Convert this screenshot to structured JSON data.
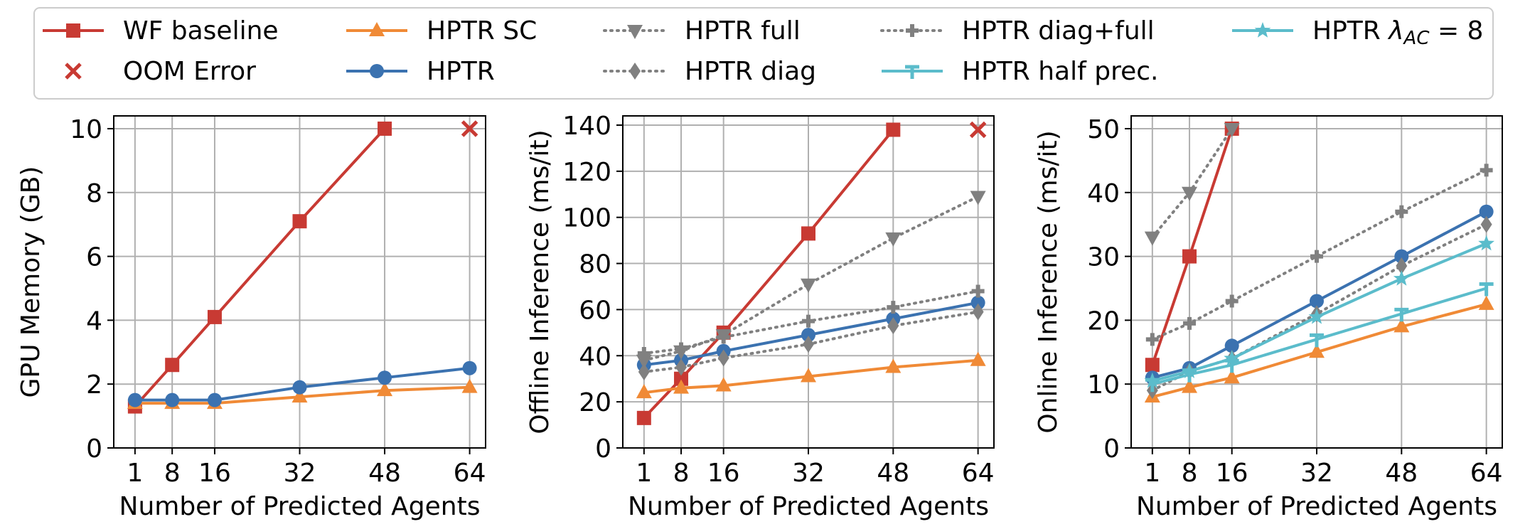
{
  "legend": [
    {
      "key": "wf",
      "label": "WF baseline"
    },
    {
      "key": "oom",
      "label": "OOM Error"
    },
    {
      "key": "sc",
      "label": "HPTR SC"
    },
    {
      "key": "hptr",
      "label": "HPTR"
    },
    {
      "key": "full",
      "label": "HPTR full"
    },
    {
      "key": "diag",
      "label": "HPTR diag"
    },
    {
      "key": "diagfull",
      "label": "HPTR diag+full"
    },
    {
      "key": "half",
      "label": "HPTR half prec."
    },
    {
      "key": "lac",
      "label": "HPTR λ_AC = 8"
    }
  ],
  "series_styles": {
    "wf": {
      "color": "#c83a33",
      "marker": "square",
      "dash": "solid"
    },
    "oom": {
      "color": "#c83a33",
      "marker": "x",
      "dash": "none"
    },
    "sc": {
      "color": "#f08a36",
      "marker": "triangle-up",
      "dash": "solid"
    },
    "hptr": {
      "color": "#3b72b0",
      "marker": "circle",
      "dash": "solid"
    },
    "full": {
      "color": "#808080",
      "marker": "triangle-down",
      "dash": "dotted"
    },
    "diag": {
      "color": "#808080",
      "marker": "diamond",
      "dash": "dotted"
    },
    "diagfull": {
      "color": "#808080",
      "marker": "plus",
      "dash": "dotted"
    },
    "half": {
      "color": "#5bbccb",
      "marker": "tri-plus",
      "dash": "solid"
    },
    "lac": {
      "color": "#5bbccb",
      "marker": "star",
      "dash": "solid"
    }
  },
  "chart_data": [
    {
      "type": "line",
      "xlabel": "Number of Predicted Agents",
      "ylabel": "GPU Memory (GB)",
      "x_ticks": [
        1,
        8,
        16,
        32,
        48,
        64
      ],
      "y_ticks": [
        0,
        2,
        4,
        6,
        8,
        10
      ],
      "xlim": [
        -3,
        67
      ],
      "ylim": [
        0,
        10.4
      ],
      "grid": true,
      "series": [
        {
          "key": "wf",
          "x": [
            1,
            8,
            16,
            32,
            48
          ],
          "y": [
            1.3,
            2.6,
            4.1,
            7.1,
            10.0
          ]
        },
        {
          "key": "oom",
          "x": [
            64
          ],
          "y": [
            10.0
          ]
        },
        {
          "key": "sc",
          "x": [
            1,
            8,
            16,
            32,
            48,
            64
          ],
          "y": [
            1.4,
            1.4,
            1.4,
            1.6,
            1.8,
            1.9
          ]
        },
        {
          "key": "hptr",
          "x": [
            1,
            8,
            16,
            32,
            48,
            64
          ],
          "y": [
            1.5,
            1.5,
            1.5,
            1.9,
            2.2,
            2.5
          ]
        }
      ]
    },
    {
      "type": "line",
      "xlabel": "Number of Predicted Agents",
      "ylabel": "Offline Inference (ms/it)",
      "x_ticks": [
        1,
        8,
        16,
        32,
        48,
        64
      ],
      "y_ticks": [
        0,
        20,
        40,
        60,
        80,
        100,
        120,
        140
      ],
      "xlim": [
        -3,
        67
      ],
      "ylim": [
        0,
        144
      ],
      "grid": true,
      "series": [
        {
          "key": "wf",
          "x": [
            1,
            8,
            16,
            32,
            48
          ],
          "y": [
            13,
            30,
            50,
            93,
            138
          ]
        },
        {
          "key": "oom",
          "x": [
            64
          ],
          "y": [
            138
          ]
        },
        {
          "key": "sc",
          "x": [
            1,
            8,
            16,
            32,
            48,
            64
          ],
          "y": [
            24,
            26,
            27,
            31,
            35,
            38
          ]
        },
        {
          "key": "hptr",
          "x": [
            1,
            8,
            16,
            32,
            48,
            64
          ],
          "y": [
            36,
            38,
            42,
            49,
            56,
            63
          ]
        },
        {
          "key": "full",
          "x": [
            1,
            8,
            16,
            32,
            48,
            64
          ],
          "y": [
            38,
            42,
            49,
            71,
            91,
            109
          ]
        },
        {
          "key": "diag",
          "x": [
            1,
            8,
            16,
            32,
            48,
            64
          ],
          "y": [
            33,
            35,
            39,
            45,
            53,
            59
          ]
        },
        {
          "key": "diagfull",
          "x": [
            1,
            8,
            16,
            32,
            48,
            64
          ],
          "y": [
            41,
            43,
            48,
            55,
            61,
            68
          ]
        }
      ]
    },
    {
      "type": "line",
      "xlabel": "Number of Predicted Agents",
      "ylabel": "Online Inference (ms/it)",
      "x_ticks": [
        1,
        8,
        16,
        32,
        48,
        64
      ],
      "y_ticks": [
        0,
        10,
        20,
        30,
        40,
        50
      ],
      "xlim": [
        -3,
        67
      ],
      "ylim": [
        0,
        52
      ],
      "grid": true,
      "series": [
        {
          "key": "wf",
          "x": [
            1,
            8,
            16
          ],
          "y": [
            13,
            30,
            50
          ]
        },
        {
          "key": "sc",
          "x": [
            1,
            8,
            16,
            32,
            48,
            64
          ],
          "y": [
            8,
            9.5,
            11,
            15,
            19,
            22.5
          ]
        },
        {
          "key": "hptr",
          "x": [
            1,
            8,
            16,
            32,
            48,
            64
          ],
          "y": [
            11,
            12.5,
            16,
            23,
            30,
            37
          ]
        },
        {
          "key": "full",
          "x": [
            1,
            8,
            16
          ],
          "y": [
            33,
            40,
            50
          ]
        },
        {
          "key": "diag",
          "x": [
            1,
            8,
            16,
            32,
            48,
            64
          ],
          "y": [
            9,
            12,
            14,
            21,
            28.5,
            35
          ]
        },
        {
          "key": "diagfull",
          "x": [
            1,
            8,
            16,
            32,
            48,
            64
          ],
          "y": [
            17,
            19.5,
            23,
            30,
            37,
            43.5
          ]
        },
        {
          "key": "half",
          "x": [
            1,
            8,
            16,
            32,
            48,
            64
          ],
          "y": [
            10,
            11.5,
            13,
            17,
            21,
            25
          ]
        },
        {
          "key": "lac",
          "x": [
            1,
            8,
            16,
            32,
            48,
            64
          ],
          "y": [
            10.5,
            12,
            14,
            20.5,
            26.5,
            32
          ]
        }
      ]
    }
  ]
}
